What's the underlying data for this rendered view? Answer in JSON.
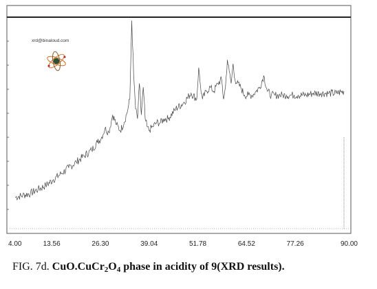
{
  "chart_data": {
    "type": "line",
    "xlabel": "",
    "ylabel": "",
    "xlim": [
      4.0,
      90.0
    ],
    "ylim": [
      0,
      100
    ],
    "ticks": [
      "4.00",
      "13.56",
      "26.30",
      "39.04",
      "51.78",
      "64.52",
      "77.26",
      "90.00"
    ],
    "tick_values": [
      4.0,
      13.56,
      26.3,
      39.04,
      51.78,
      64.52,
      77.26,
      90.0
    ],
    "grid": false,
    "series": [
      {
        "x": [
          4,
          6,
          8,
          10,
          12,
          14,
          16,
          18,
          20,
          22,
          24,
          25.5,
          26.5,
          27.5,
          28.5,
          29.5,
          30.5,
          31.5,
          32.5,
          33.5,
          34.0,
          34.5,
          35.0,
          35.5,
          36.0,
          36.5,
          37.0,
          37.5,
          38.0,
          38.5,
          39.0,
          40,
          41,
          42,
          43,
          44,
          46,
          48,
          50,
          51.5,
          52.0,
          52.5,
          53.0,
          54,
          55,
          56,
          57,
          58.0,
          58.5,
          59.0,
          59.5,
          60.0,
          60.5,
          61.0,
          61.5,
          62,
          63,
          64,
          65,
          66,
          67,
          68,
          69.0,
          70,
          71,
          72,
          73,
          74,
          75,
          76,
          77,
          78,
          80,
          82,
          84,
          86,
          88,
          90
        ],
        "y": [
          10,
          11,
          12,
          14,
          16,
          19,
          22,
          25,
          28,
          31,
          34,
          38,
          40,
          45,
          43,
          52,
          47,
          44,
          48,
          55,
          60,
          100,
          72,
          55,
          50,
          68,
          52,
          66,
          50,
          46,
          44,
          46,
          48,
          48,
          50,
          50,
          55,
          58,
          63,
          60,
          76,
          66,
          60,
          64,
          66,
          64,
          68,
          70,
          60,
          66,
          80,
          74,
          68,
          78,
          70,
          68,
          66,
          62,
          62,
          62,
          64,
          66,
          72,
          64,
          62,
          62,
          62,
          62,
          62,
          62,
          62,
          62,
          62,
          63,
          63,
          63,
          63,
          64
        ],
        "noise_amplitude": 4
      }
    ]
  },
  "watermark": {
    "text": "xrd@binaloud.com"
  },
  "caption": {
    "prefix": "FIG. 7d. ",
    "compound_a": "CuO.CuCr",
    "sub_a": "2",
    "compound_b": "O",
    "sub_b": "4",
    "rest": " phase in acidity of 9(XRD results)."
  },
  "colors": {
    "trace": "#444444",
    "frame": "#555555",
    "dotted_line": "#888888"
  }
}
